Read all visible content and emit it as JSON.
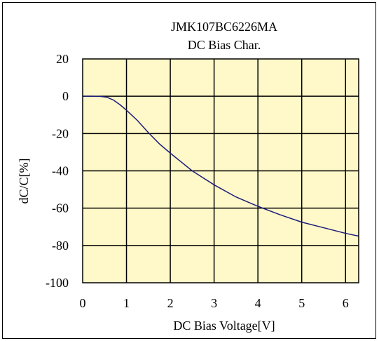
{
  "chart_data": {
    "type": "line",
    "title": "JMK107BC6226MA",
    "subtitle": "DC Bias Char.",
    "xlabel": "DC Bias Voltage[V]",
    "ylabel": "dC/C[%]",
    "xlim": [
      0,
      6.3
    ],
    "ylim": [
      -100,
      20
    ],
    "x_ticks": [
      0,
      1,
      2,
      3,
      4,
      5,
      6
    ],
    "y_ticks": [
      20,
      0,
      -20,
      -40,
      -60,
      -80,
      -100
    ],
    "grid": true,
    "legend": "none",
    "colors": {
      "plot_background": "#fff8c8",
      "line": "#1c1c7c",
      "grid": "#000000"
    },
    "series": [
      {
        "x": [
          0,
          0.2,
          0.4,
          0.55,
          0.7,
          0.85,
          1.0,
          1.25,
          1.5,
          1.75,
          2.0,
          2.5,
          3.0,
          3.5,
          4.0,
          4.5,
          5.0,
          5.5,
          6.0,
          6.3
        ],
        "values": [
          0,
          0,
          -0.1,
          -0.5,
          -2,
          -4.5,
          -7.5,
          -13,
          -19.5,
          -25.5,
          -30.5,
          -40,
          -47.5,
          -54,
          -59,
          -63.5,
          -67.5,
          -70.5,
          -73.5,
          -75
        ]
      }
    ]
  }
}
